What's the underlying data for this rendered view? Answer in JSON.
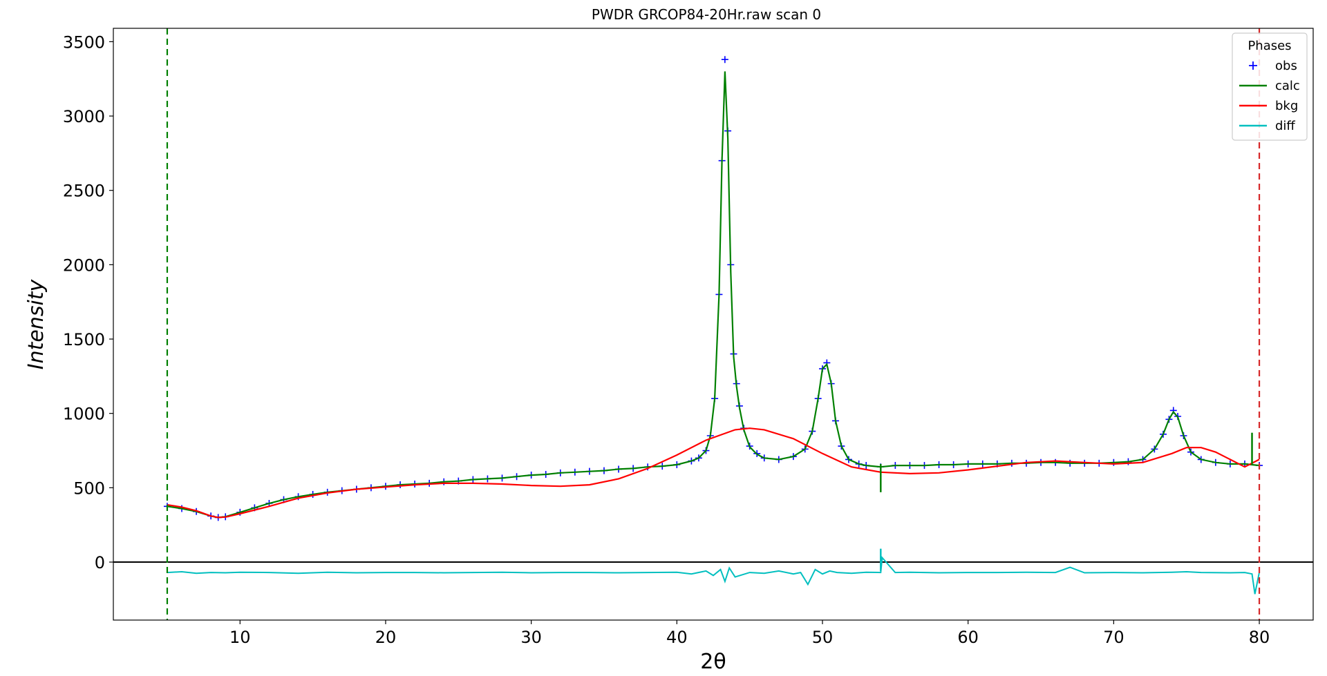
{
  "chart_data": {
    "type": "line",
    "title": "PWDR GRCOP84-20Hr.raw scan 0",
    "xlabel": "2θ",
    "ylabel": "Intensity",
    "xlim": [
      1.3,
      83.7
    ],
    "ylim": [
      -390,
      3590
    ],
    "xticks": [
      10,
      20,
      30,
      40,
      50,
      60,
      70,
      80
    ],
    "yticks": [
      0,
      500,
      1000,
      1500,
      2000,
      2500,
      3000,
      3500
    ],
    "grid": false,
    "legend": {
      "title": "Phases",
      "placement": "top-right"
    },
    "limit_lines": [
      {
        "x": 5.0,
        "color": "#008000"
      },
      {
        "x": 80.0,
        "color": "#d62728"
      }
    ],
    "zero_line": 0,
    "series": [
      {
        "name": "obs",
        "kind": "markers",
        "marker": "+",
        "color": "#0000ff",
        "x": [
          5,
          6,
          7,
          8,
          8.5,
          9,
          10,
          11,
          12,
          13,
          14,
          15,
          16,
          17,
          18,
          19,
          20,
          21,
          22,
          23,
          24,
          25,
          26,
          27,
          28,
          29,
          30,
          31,
          32,
          33,
          34,
          35,
          36,
          37,
          38,
          39,
          40,
          41,
          41.5,
          42,
          42.3,
          42.6,
          42.9,
          43.1,
          43.3,
          43.5,
          43.7,
          43.9,
          44.1,
          44.3,
          44.6,
          45,
          45.5,
          46,
          47,
          48,
          48.8,
          49.3,
          49.7,
          50,
          50.3,
          50.6,
          50.9,
          51.3,
          51.8,
          52.5,
          53,
          54,
          55,
          56,
          57,
          58,
          59,
          60,
          61,
          62,
          63,
          64,
          65,
          66,
          67,
          68,
          69,
          70,
          71,
          72,
          72.8,
          73.4,
          73.8,
          74.1,
          74.4,
          74.8,
          75.3,
          76,
          77,
          78,
          79,
          80
        ],
        "y": [
          375,
          360,
          340,
          310,
          300,
          305,
          335,
          365,
          395,
          420,
          440,
          455,
          470,
          480,
          490,
          500,
          510,
          520,
          525,
          530,
          540,
          545,
          555,
          560,
          565,
          575,
          585,
          590,
          600,
          605,
          610,
          615,
          625,
          630,
          640,
          645,
          655,
          680,
          700,
          750,
          850,
          1100,
          1800,
          2700,
          3380,
          2900,
          2000,
          1400,
          1200,
          1050,
          900,
          780,
          730,
          700,
          690,
          710,
          760,
          880,
          1100,
          1300,
          1340,
          1200,
          950,
          780,
          690,
          660,
          650,
          640,
          650,
          650,
          650,
          655,
          655,
          660,
          660,
          660,
          665,
          665,
          670,
          670,
          665,
          665,
          665,
          670,
          675,
          690,
          760,
          860,
          960,
          1020,
          980,
          850,
          740,
          690,
          670,
          660,
          660,
          650
        ]
      },
      {
        "name": "calc",
        "kind": "line",
        "color": "#008000",
        "x": [
          5,
          6,
          7,
          8,
          8.5,
          9,
          10,
          11,
          12,
          13,
          14,
          15,
          16,
          17,
          18,
          19,
          20,
          21,
          22,
          23,
          24,
          25,
          26,
          27,
          28,
          29,
          30,
          31,
          32,
          33,
          34,
          35,
          36,
          37,
          38,
          39,
          40,
          41,
          41.5,
          42,
          42.3,
          42.6,
          42.9,
          43.1,
          43.3,
          43.5,
          43.7,
          43.9,
          44.1,
          44.3,
          44.6,
          45,
          45.5,
          46,
          47,
          48,
          48.8,
          49.3,
          49.7,
          50,
          50.3,
          50.6,
          50.9,
          51.3,
          51.8,
          52.5,
          53,
          54,
          55,
          56,
          57,
          58,
          59,
          60,
          61,
          62,
          63,
          64,
          65,
          66,
          67,
          68,
          69,
          70,
          71,
          72,
          72.8,
          73.4,
          73.8,
          74.1,
          74.4,
          74.8,
          75.3,
          76,
          77,
          78,
          79,
          80
        ],
        "y": [
          375,
          360,
          340,
          310,
          300,
          305,
          335,
          365,
          395,
          420,
          440,
          455,
          470,
          480,
          490,
          500,
          510,
          520,
          525,
          530,
          540,
          545,
          555,
          560,
          565,
          575,
          585,
          590,
          600,
          605,
          610,
          615,
          625,
          630,
          640,
          645,
          655,
          680,
          700,
          750,
          850,
          1100,
          1800,
          2700,
          3300,
          2850,
          1950,
          1380,
          1180,
          1040,
          890,
          775,
          725,
          700,
          690,
          710,
          760,
          880,
          1100,
          1300,
          1330,
          1200,
          950,
          780,
          690,
          660,
          650,
          640,
          650,
          650,
          650,
          655,
          655,
          660,
          660,
          660,
          665,
          665,
          670,
          670,
          665,
          665,
          665,
          670,
          675,
          690,
          760,
          860,
          960,
          1010,
          975,
          850,
          740,
          690,
          670,
          660,
          660,
          650
        ]
      },
      {
        "name": "bkg",
        "kind": "line",
        "color": "#ff0000",
        "x": [
          5,
          6,
          7,
          8,
          8.5,
          9,
          10,
          12,
          14,
          16,
          18,
          20,
          22,
          24,
          26,
          28,
          30,
          32,
          34,
          36,
          38,
          40,
          42,
          44,
          45,
          46,
          48,
          50,
          52,
          54,
          56,
          58,
          60,
          62,
          64,
          66,
          68,
          70,
          72,
          74,
          75,
          76,
          77,
          78,
          79,
          80
        ],
        "y": [
          385,
          370,
          345,
          310,
          300,
          303,
          325,
          375,
          430,
          465,
          490,
          505,
          520,
          530,
          530,
          525,
          515,
          510,
          520,
          560,
          630,
          720,
          820,
          890,
          900,
          890,
          830,
          730,
          640,
          605,
          595,
          600,
          620,
          645,
          670,
          680,
          670,
          660,
          670,
          730,
          770,
          770,
          740,
          690,
          640,
          690
        ]
      },
      {
        "name": "diff",
        "kind": "line",
        "color": "#00bfbf",
        "x": [
          5,
          6,
          7,
          8,
          9,
          10,
          12,
          14,
          16,
          18,
          20,
          22,
          24,
          26,
          28,
          30,
          32,
          34,
          36,
          38,
          40,
          41,
          42,
          42.5,
          43,
          43.3,
          43.6,
          44,
          45,
          46,
          47,
          48,
          48.5,
          49,
          49.5,
          50,
          50.5,
          51,
          52,
          53,
          54,
          54.1,
          55,
          56,
          58,
          60,
          62,
          64,
          66,
          67,
          68,
          70,
          72,
          74,
          75,
          76,
          78,
          79,
          79.5,
          79.7,
          80
        ],
        "y": [
          -70,
          -65,
          -75,
          -70,
          -72,
          -68,
          -70,
          -75,
          -68,
          -72,
          -70,
          -70,
          -72,
          -70,
          -68,
          -72,
          -70,
          -70,
          -72,
          -70,
          -68,
          -80,
          -60,
          -90,
          -50,
          -130,
          -40,
          -100,
          -70,
          -75,
          -60,
          -80,
          -70,
          -150,
          -50,
          -80,
          -60,
          -70,
          -75,
          -68,
          -70,
          30,
          -70,
          -68,
          -72,
          -70,
          -70,
          -68,
          -70,
          -35,
          -72,
          -70,
          -72,
          -68,
          -65,
          -70,
          -72,
          -70,
          -80,
          -215,
          -70
        ]
      }
    ],
    "spikes": [
      {
        "series": "calc",
        "x": 54.0,
        "y0": 660,
        "y1": 470
      },
      {
        "series": "calc",
        "x": 79.5,
        "y0": 660,
        "y1": 870
      },
      {
        "series": "diff",
        "x": 54.0,
        "y0": -60,
        "y1": 90
      }
    ]
  }
}
